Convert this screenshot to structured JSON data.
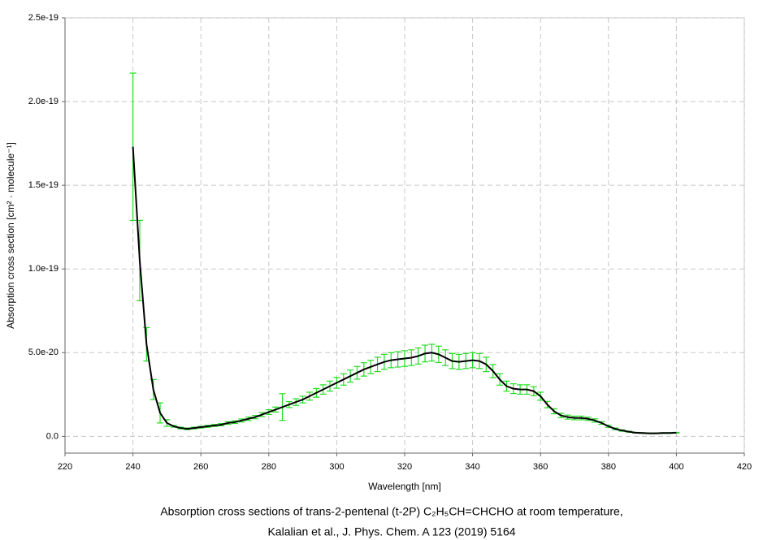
{
  "chart_data": {
    "type": "errorbar-line",
    "xlabel": "Wavelength [nm]",
    "ylabel": "Absorption cross section [cm² · molecule⁻¹]",
    "caption": [
      "Absorption cross sections of trans-2-pentenal (t-2P) C₂H₅CH=CHCHO at room temperature,",
      "Kalalian et al., J. Phys. Chem. A 123 (2019) 5164"
    ],
    "xlim": [
      220,
      420
    ],
    "xticks": [
      220,
      240,
      260,
      280,
      300,
      320,
      340,
      360,
      380,
      400,
      420
    ],
    "ylim": [
      -1e-20,
      2.5e-19
    ],
    "yticks": [
      {
        "value": 0,
        "label": "0.0"
      },
      {
        "value": 5e-20,
        "label": "5.0e-20"
      },
      {
        "value": 1e-19,
        "label": "1.0e-19"
      },
      {
        "value": 1.5e-19,
        "label": "1.5e-19"
      },
      {
        "value": 2e-19,
        "label": "2.0e-19"
      },
      {
        "value": 2.5e-19,
        "label": "2.5e-19"
      }
    ],
    "grid": true,
    "line_color": "#000000",
    "error_color": "#22dd22",
    "x": [
      240,
      242,
      244,
      246,
      248,
      250,
      252,
      254,
      256,
      258,
      260,
      262,
      264,
      266,
      268,
      270,
      272,
      274,
      276,
      278,
      280,
      282,
      284,
      286,
      288,
      290,
      292,
      294,
      296,
      298,
      300,
      302,
      304,
      306,
      308,
      310,
      312,
      314,
      316,
      318,
      320,
      322,
      324,
      326,
      328,
      330,
      332,
      334,
      336,
      338,
      340,
      342,
      344,
      346,
      348,
      350,
      352,
      354,
      356,
      358,
      360,
      362,
      364,
      366,
      368,
      370,
      372,
      374,
      376,
      378,
      380,
      382,
      384,
      386,
      388,
      390,
      392,
      394,
      396,
      398,
      400
    ],
    "values": [
      1.73e-19,
      1.05e-19,
      5.5e-20,
      2.8e-20,
      1.4e-20,
      8e-21,
      6e-21,
      5e-21,
      4.5e-21,
      5e-21,
      5.5e-21,
      6e-21,
      6.5e-21,
      7e-21,
      8e-21,
      8.5e-21,
      9.5e-21,
      1.05e-20,
      1.15e-20,
      1.3e-20,
      1.45e-20,
      1.6e-20,
      1.75e-20,
      1.9e-20,
      2.05e-20,
      2.2e-20,
      2.4e-20,
      2.6e-20,
      2.8e-20,
      3e-20,
      3.2e-20,
      3.4e-20,
      3.6e-20,
      3.8e-20,
      4e-20,
      4.15e-20,
      4.3e-20,
      4.45e-20,
      4.55e-20,
      4.6e-20,
      4.65e-20,
      4.7e-20,
      4.8e-20,
      4.95e-20,
      5e-20,
      4.9e-20,
      4.7e-20,
      4.5e-20,
      4.45e-20,
      4.5e-20,
      4.55e-20,
      4.5e-20,
      4.3e-20,
      3.9e-20,
      3.4e-20,
      3e-20,
      2.85e-20,
      2.8e-20,
      2.8e-20,
      2.7e-20,
      2.4e-20,
      1.9e-20,
      1.5e-20,
      1.25e-20,
      1.15e-20,
      1.1e-20,
      1.1e-20,
      1.05e-20,
      9.5e-21,
      8e-21,
      6e-21,
      4.5e-21,
      3.5e-21,
      2.8e-21,
      2.2e-21,
      2e-21,
      1.8e-21,
      1.8e-21,
      2e-21,
      2e-21,
      2.2e-21
    ],
    "errors": [
      4.4e-20,
      2.4e-20,
      1e-20,
      6e-21,
      6e-21,
      2e-21,
      5e-22,
      5e-22,
      5e-22,
      5e-22,
      5e-22,
      6e-22,
      6e-22,
      7e-22,
      8e-22,
      8e-22,
      9e-22,
      1e-21,
      1e-21,
      1.2e-21,
      1.4e-21,
      1.5e-21,
      8e-21,
      1.8e-21,
      2e-21,
      2e-21,
      2.4e-21,
      2.6e-21,
      2.8e-21,
      3e-21,
      3.2e-21,
      3.4e-21,
      3.6e-21,
      3.8e-21,
      4e-21,
      4e-21,
      4.3e-21,
      4.5e-21,
      4.5e-21,
      4.6e-21,
      4.7e-21,
      4.7e-21,
      4.8e-21,
      5e-21,
      5e-21,
      4.9e-21,
      4.7e-21,
      4.5e-21,
      4.5e-21,
      4.5e-21,
      4.5e-21,
      4.5e-21,
      4.3e-21,
      3.9e-21,
      3.4e-21,
      3e-21,
      2.9e-21,
      2.8e-21,
      2.8e-21,
      2.7e-21,
      2.4e-21,
      1.9e-21,
      1.5e-21,
      1.3e-21,
      1.2e-21,
      1.1e-21,
      1.1e-21,
      1e-21,
      1e-21,
      8e-22,
      6e-22,
      5e-22,
      4e-22,
      3e-22,
      2e-22,
      2e-22,
      2e-22,
      2e-22,
      2e-22,
      2e-22,
      2e-22
    ]
  }
}
